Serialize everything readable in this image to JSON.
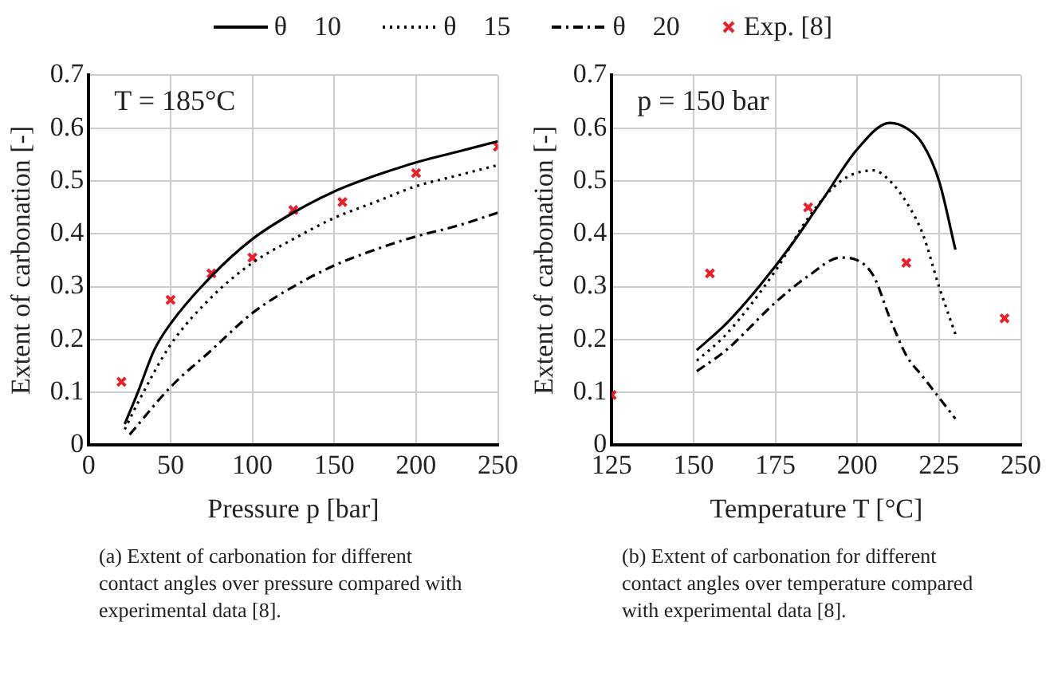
{
  "chart_data": [
    {
      "type": "line",
      "ylabel": "Extent of carbonation [-]",
      "xlabel": "Pressure p [bar]",
      "xlim": [
        0,
        250
      ],
      "xticks": [
        0,
        50,
        100,
        150,
        200,
        250
      ],
      "ylim": [
        0,
        0.7
      ],
      "yticks": [
        0,
        0.1,
        0.2,
        0.3,
        0.4,
        0.5,
        0.6,
        0.7
      ],
      "grid": true,
      "legend": "top",
      "annotations": [
        "T = 185°C",
        "(a) Extent of carbonation for different contact angles over pressure compared with experimental data [8]."
      ],
      "series": [
        {
          "name": "θ    10",
          "color": "#000000",
          "line_style": "solid",
          "marker": "none",
          "x": [
            22,
            30,
            40,
            50,
            75,
            100,
            125,
            150,
            175,
            200,
            225,
            250
          ],
          "values": [
            0.04,
            0.1,
            0.18,
            0.23,
            0.32,
            0.39,
            0.44,
            0.48,
            0.51,
            0.535,
            0.555,
            0.575
          ]
        },
        {
          "name": "θ    15",
          "color": "#000000",
          "line_style": "dotted",
          "marker": "none",
          "x": [
            22,
            30,
            50,
            75,
            100,
            125,
            150,
            175,
            200,
            225,
            250
          ],
          "values": [
            0.03,
            0.08,
            0.19,
            0.28,
            0.345,
            0.39,
            0.43,
            0.46,
            0.49,
            0.51,
            0.53
          ]
        },
        {
          "name": "θ    20",
          "color": "#000000",
          "line_style": "dashdot",
          "marker": "none",
          "x": [
            25,
            50,
            75,
            100,
            125,
            150,
            175,
            200,
            225,
            250
          ],
          "values": [
            0.02,
            0.11,
            0.18,
            0.25,
            0.3,
            0.34,
            0.37,
            0.395,
            0.415,
            0.44
          ]
        },
        {
          "name": "Exp. [8]",
          "type": "scatter",
          "color": "#e8202a",
          "marker": "cross",
          "x": [
            20,
            50,
            75,
            100,
            125,
            155,
            200,
            250
          ],
          "values": [
            0.12,
            0.275,
            0.325,
            0.355,
            0.445,
            0.46,
            0.515,
            0.565
          ]
        }
      ]
    },
    {
      "type": "line",
      "ylabel": "Extent of carbonation [-]",
      "xlabel": "Temperature T [°C]",
      "xlim": [
        125,
        250
      ],
      "xticks": [
        125,
        150,
        175,
        200,
        225,
        250
      ],
      "ylim": [
        0,
        0.7
      ],
      "yticks": [
        0,
        0.1,
        0.2,
        0.3,
        0.4,
        0.5,
        0.6,
        0.7
      ],
      "grid": true,
      "annotations": [
        "p = 150 bar",
        "(b) Extent of carbonation for different contact angles over temperature compared with experimental data [8]."
      ],
      "series": [
        {
          "color": "#000000",
          "line_style": "solid",
          "marker": "none",
          "x": [
            151,
            160,
            170,
            180,
            190,
            200,
            210,
            215,
            220,
            225,
            230
          ],
          "values": [
            0.18,
            0.23,
            0.3,
            0.38,
            0.47,
            0.56,
            0.61,
            0.6,
            0.57,
            0.5,
            0.37
          ]
        },
        {
          "color": "#000000",
          "line_style": "dotted",
          "marker": "none",
          "x": [
            151,
            160,
            175,
            185,
            195,
            205,
            210,
            215,
            220,
            225,
            230
          ],
          "values": [
            0.16,
            0.21,
            0.33,
            0.43,
            0.5,
            0.52,
            0.5,
            0.46,
            0.4,
            0.3,
            0.21
          ]
        },
        {
          "color": "#000000",
          "line_style": "dashdot",
          "marker": "none",
          "x": [
            151,
            160,
            175,
            185,
            195,
            200,
            205,
            210,
            215,
            220,
            225,
            230
          ],
          "values": [
            0.14,
            0.18,
            0.27,
            0.32,
            0.355,
            0.35,
            0.32,
            0.24,
            0.17,
            0.13,
            0.09,
            0.05
          ]
        },
        {
          "type": "scatter",
          "color": "#e8202a",
          "marker": "cross",
          "x": [
            125,
            155,
            185,
            215,
            245
          ],
          "values": [
            0.095,
            0.325,
            0.45,
            0.345,
            0.24
          ]
        }
      ]
    }
  ]
}
